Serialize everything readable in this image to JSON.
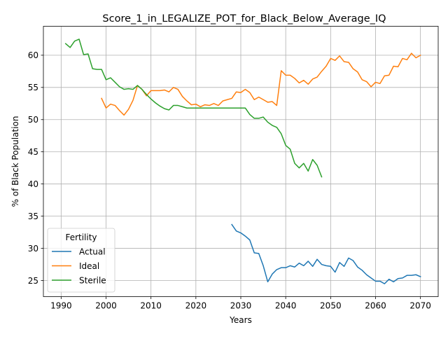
{
  "chart_data": {
    "type": "line",
    "title": "Score_1_in_LEGALIZE_POT_for_Black_Below_Average_IQ",
    "xlabel": "Years",
    "ylabel": "% of Black Population",
    "xlim": [
      1986.05,
      2073.95
    ],
    "ylim": [
      22.5,
      64.5
    ],
    "xticks": [
      1990,
      2000,
      2010,
      2020,
      2030,
      2040,
      2050,
      2060,
      2070
    ],
    "yticks": [
      25,
      30,
      35,
      40,
      45,
      50,
      55,
      60
    ],
    "grid": true,
    "legend": {
      "title": "Fertility",
      "placement": "lower left"
    },
    "series": [
      {
        "name": "Actual",
        "color": "#1f77b4",
        "x": [
          2028,
          2029,
          2030,
          2031,
          2032,
          2033,
          2034,
          2035,
          2036,
          2037,
          2038,
          2039,
          2040,
          2041,
          2042,
          2043,
          2044,
          2045,
          2046,
          2047,
          2048,
          2049,
          2050,
          2051,
          2052,
          2053,
          2054,
          2055,
          2056,
          2057,
          2058,
          2059,
          2060,
          2061,
          2062,
          2063,
          2064,
          2065,
          2066,
          2067,
          2068,
          2069,
          2070
        ],
        "y": [
          33.7,
          32.7,
          32.4,
          31.9,
          31.3,
          29.3,
          29.2,
          27.3,
          24.8,
          26.0,
          26.7,
          27.0,
          27.0,
          27.3,
          27.1,
          27.7,
          27.3,
          28.0,
          27.2,
          28.3,
          27.5,
          27.3,
          27.2,
          26.3,
          27.8,
          27.2,
          28.5,
          28.1,
          27.1,
          26.6,
          25.9,
          25.4,
          24.9,
          24.9,
          24.5,
          25.2,
          24.8,
          25.3,
          25.4,
          25.8,
          25.8,
          25.9,
          25.6
        ]
      },
      {
        "name": "Ideal",
        "color": "#ff7f0e",
        "x": [
          1999,
          2000,
          2001,
          2002,
          2003,
          2004,
          2005,
          2006,
          2007,
          2008,
          2009,
          2010,
          2011,
          2012,
          2013,
          2014,
          2015,
          2016,
          2017,
          2018,
          2019,
          2020,
          2021,
          2022,
          2023,
          2024,
          2025,
          2026,
          2027,
          2028,
          2029,
          2030,
          2031,
          2032,
          2033,
          2034,
          2035,
          2036,
          2037,
          2038,
          2039,
          2040,
          2041,
          2042,
          2043,
          2044,
          2045,
          2046,
          2047,
          2048,
          2049,
          2050,
          2051,
          2052,
          2053,
          2054,
          2055,
          2056,
          2057,
          2058,
          2059,
          2060,
          2061,
          2062,
          2063,
          2064,
          2065,
          2066,
          2067,
          2068,
          2069,
          2070
        ],
        "y": [
          53.3,
          51.8,
          52.4,
          52.2,
          51.4,
          50.7,
          51.6,
          53.0,
          55.3,
          54.7,
          53.7,
          54.5,
          54.5,
          54.5,
          54.6,
          54.3,
          55.0,
          54.7,
          53.6,
          52.9,
          52.3,
          52.4,
          52.0,
          52.3,
          52.2,
          52.5,
          52.2,
          52.9,
          53.1,
          53.3,
          54.3,
          54.2,
          54.7,
          54.2,
          53.1,
          53.5,
          53.1,
          52.7,
          52.8,
          52.2,
          57.6,
          56.9,
          56.9,
          56.4,
          55.7,
          56.1,
          55.5,
          56.3,
          56.6,
          57.5,
          58.3,
          59.5,
          59.2,
          59.9,
          59.0,
          58.9,
          57.9,
          57.4,
          56.2,
          55.9,
          55.1,
          55.8,
          55.6,
          56.8,
          56.9,
          58.3,
          58.2,
          59.5,
          59.3,
          60.3,
          59.6,
          60.0
        ]
      },
      {
        "name": "Sterile",
        "color": "#2ca02c",
        "x": [
          1991,
          1992,
          1993,
          1994,
          1995,
          1996,
          1997,
          1998,
          1999,
          2000,
          2001,
          2002,
          2003,
          2004,
          2005,
          2006,
          2007,
          2008,
          2009,
          2010,
          2011,
          2012,
          2013,
          2014,
          2015,
          2016,
          2017,
          2018,
          2019,
          2020,
          2021,
          2022,
          2023,
          2024,
          2025,
          2026,
          2027,
          2028,
          2029,
          2030,
          2031,
          2032,
          2033,
          2034,
          2035,
          2036,
          2037,
          2038,
          2039,
          2040,
          2041,
          2042,
          2043,
          2044,
          2045,
          2046,
          2047,
          2048
        ],
        "y": [
          61.8,
          61.2,
          62.2,
          62.5,
          60.1,
          60.2,
          57.9,
          57.8,
          57.8,
          56.2,
          56.5,
          55.8,
          55.1,
          54.7,
          54.8,
          54.7,
          55.3,
          54.7,
          53.9,
          53.2,
          52.6,
          52.1,
          51.7,
          51.5,
          52.2,
          52.2,
          52.0,
          51.8,
          51.8,
          51.8,
          51.8,
          51.8,
          51.8,
          51.8,
          51.8,
          51.8,
          51.8,
          51.8,
          51.8,
          51.8,
          51.8,
          50.8,
          50.2,
          50.2,
          50.4,
          49.6,
          49.1,
          48.8,
          47.8,
          46.0,
          45.4,
          43.2,
          42.5,
          43.2,
          42.0,
          43.8,
          42.9,
          41.1
        ]
      }
    ]
  }
}
